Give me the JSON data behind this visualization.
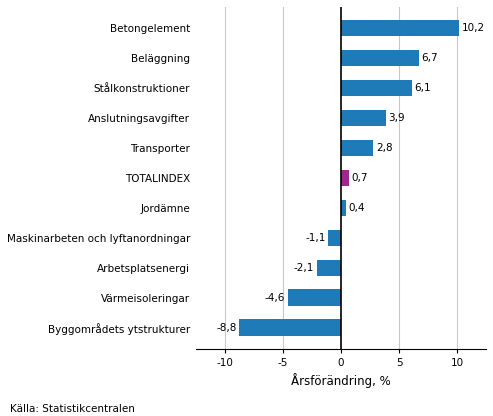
{
  "categories": [
    "Byggområdets ytstrukturer",
    "Värmeisoleringar",
    "Arbetsplatsenergi",
    "Maskinarbeten och lyftanordningar",
    "Jordämne",
    "TOTALINDEX",
    "Transporter",
    "Anslutningsavgifter",
    "Stålkonstruktioner",
    "Beläggning",
    "Betongelement"
  ],
  "values": [
    -8.8,
    -4.6,
    -2.1,
    -1.1,
    0.4,
    0.7,
    2.8,
    3.9,
    6.1,
    6.7,
    10.2
  ],
  "colors": [
    "#1f7bb8",
    "#1f7bb8",
    "#1f7bb8",
    "#1f7bb8",
    "#1f7bb8",
    "#a0288c",
    "#1f7bb8",
    "#1f7bb8",
    "#1f7bb8",
    "#1f7bb8",
    "#1f7bb8"
  ],
  "xlabel": "Årsförändring, %",
  "xlim": [
    -12.5,
    12.5
  ],
  "xticks": [
    -10,
    -5,
    0,
    5,
    10
  ],
  "source_text": "Källa: Statistikcentralen",
  "value_labels": [
    "-8,8",
    "-4,6",
    "-2,1",
    "-1,1",
    "0,4",
    "0,7",
    "2,8",
    "3,9",
    "6,1",
    "6,7",
    "10,2"
  ],
  "figsize": [
    4.93,
    4.16
  ],
  "dpi": 100,
  "background_color": "#ffffff",
  "grid_color": "#c8c8c8",
  "bar_height": 0.55,
  "label_fontsize": 7.5,
  "value_fontsize": 7.5,
  "xlabel_fontsize": 8.5,
  "source_fontsize": 7.5
}
